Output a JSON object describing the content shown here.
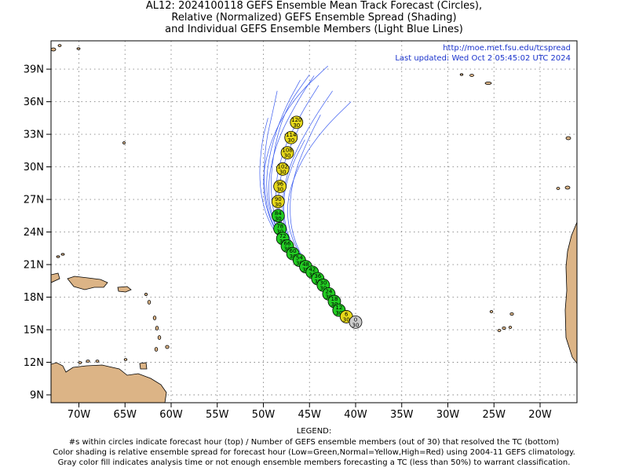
{
  "title_lines": [
    "AL12: 2024100118 GEFS Ensemble Mean Track Forecast (Circles),",
    "Relative (Normalized) GEFS Ensemble Spread (Shading)",
    "and Individual GEFS Ensemble Members (Light Blue Lines)"
  ],
  "header": {
    "url": "http://moe.met.fsu.edu/tcspread",
    "updated": "Last updated: Wed Oct 2 05:45:02 UTC 2024"
  },
  "lat_labels": [
    "9N",
    "12N",
    "15N",
    "18N",
    "21N",
    "24N",
    "27N",
    "30N",
    "33N",
    "36N",
    "39N"
  ],
  "lon_labels": [
    "70W",
    "65W",
    "60W",
    "55W",
    "50W",
    "45W",
    "40W",
    "35W",
    "30W",
    "25W",
    "20W"
  ],
  "legend": {
    "heading": "LEGEND:",
    "line1": "#s within circles indicate forecast hour (top) / Number of GEFS ensemble members (out of 30) that resolved the TC (bottom)",
    "line2": "Color shading is relative ensemble spread for forecast hour (Low=Green,Normal=Yellow,High=Red) using 2004-11 GEFS climatology.",
    "line3": "Gray color fill indicates analysis time or not enough ensemble members forecasting a TC (less than 50%) to warrant classification."
  },
  "colors": {
    "low": "#22cc22",
    "normal": "#e6d81a",
    "gray": "#cccccc",
    "land": "#dcb486",
    "member": "#3a5bf0"
  },
  "mean_track": [
    {
      "hour": "0",
      "members": "30",
      "lon": -40.0,
      "lat": 15.7,
      "spread": "gray"
    },
    {
      "hour": "6",
      "members": "30",
      "lon": -41.0,
      "lat": 16.2,
      "spread": "normal"
    },
    {
      "hour": "12",
      "members": "30",
      "lon": -41.8,
      "lat": 16.8,
      "spread": "low"
    },
    {
      "hour": "18",
      "members": "30",
      "lon": -42.3,
      "lat": 17.6,
      "spread": "low"
    },
    {
      "hour": "24",
      "members": "30",
      "lon": -42.9,
      "lat": 18.3,
      "spread": "low"
    },
    {
      "hour": "30",
      "members": "30",
      "lon": -43.5,
      "lat": 19.1,
      "spread": "low"
    },
    {
      "hour": "36",
      "members": "30",
      "lon": -44.1,
      "lat": 19.7,
      "spread": "low"
    },
    {
      "hour": "42",
      "members": "30",
      "lon": -44.7,
      "lat": 20.3,
      "spread": "low"
    },
    {
      "hour": "48",
      "members": "30",
      "lon": -45.4,
      "lat": 20.8,
      "spread": "low"
    },
    {
      "hour": "54",
      "members": "30",
      "lon": -46.1,
      "lat": 21.4,
      "spread": "low"
    },
    {
      "hour": "60",
      "members": "30",
      "lon": -46.8,
      "lat": 22.0,
      "spread": "low"
    },
    {
      "hour": "66",
      "members": "30",
      "lon": -47.4,
      "lat": 22.7,
      "spread": "low"
    },
    {
      "hour": "72",
      "members": "30",
      "lon": -47.9,
      "lat": 23.4,
      "spread": "low"
    },
    {
      "hour": "78",
      "members": "30",
      "lon": -48.2,
      "lat": 24.3,
      "spread": "low"
    },
    {
      "hour": "84",
      "members": "30",
      "lon": -48.4,
      "lat": 25.5,
      "spread": "low"
    },
    {
      "hour": "90",
      "members": "30",
      "lon": -48.4,
      "lat": 26.8,
      "spread": "normal"
    },
    {
      "hour": "96",
      "members": "30",
      "lon": -48.2,
      "lat": 28.2,
      "spread": "normal"
    },
    {
      "hour": "102",
      "members": "30",
      "lon": -47.9,
      "lat": 29.8,
      "spread": "normal"
    },
    {
      "hour": "108",
      "members": "30",
      "lon": -47.4,
      "lat": 31.3,
      "spread": "normal"
    },
    {
      "hour": "114",
      "members": "30",
      "lon": -47.0,
      "lat": 32.7,
      "spread": "normal"
    },
    {
      "hour": "120",
      "members": "30",
      "lon": -46.4,
      "lat": 34.1,
      "spread": "normal"
    }
  ],
  "members": [
    [
      [
        -40.0,
        15.7
      ],
      [
        -43.0,
        18.4
      ],
      [
        -46.3,
        21.3
      ],
      [
        -48.6,
        24.5
      ],
      [
        -49.3,
        28.0
      ],
      [
        -48.8,
        32.0
      ],
      [
        -47.5,
        35.5
      ],
      [
        -45.0,
        38.5
      ]
    ],
    [
      [
        -40.0,
        15.7
      ],
      [
        -42.8,
        18.2
      ],
      [
        -45.8,
        21.0
      ],
      [
        -47.8,
        24.2
      ],
      [
        -48.0,
        27.5
      ],
      [
        -46.8,
        31.0
      ],
      [
        -44.5,
        34.5
      ],
      [
        -42.5,
        37.0
      ]
    ],
    [
      [
        -40.0,
        15.7
      ],
      [
        -43.2,
        18.5
      ],
      [
        -46.7,
        21.6
      ],
      [
        -49.2,
        24.8
      ],
      [
        -50.0,
        28.2
      ],
      [
        -49.8,
        32.0
      ],
      [
        -49.0,
        35.0
      ],
      [
        -48.5,
        37.0
      ]
    ],
    [
      [
        -40.0,
        15.7
      ],
      [
        -42.6,
        18.0
      ],
      [
        -45.3,
        20.8
      ],
      [
        -47.2,
        23.8
      ],
      [
        -47.5,
        27.0
      ],
      [
        -46.0,
        30.5
      ],
      [
        -43.5,
        33.5
      ],
      [
        -40.5,
        36.0
      ]
    ],
    [
      [
        -40.0,
        15.7
      ],
      [
        -43.4,
        18.7
      ],
      [
        -47.0,
        22.0
      ],
      [
        -49.6,
        25.0
      ],
      [
        -50.5,
        28.5
      ],
      [
        -50.2,
        32.2
      ],
      [
        -49.5,
        34.5
      ]
    ],
    [
      [
        -40.0,
        15.7
      ],
      [
        -42.9,
        18.3
      ],
      [
        -46.0,
        21.2
      ],
      [
        -48.2,
        24.4
      ],
      [
        -48.8,
        27.8
      ],
      [
        -48.0,
        31.3
      ],
      [
        -46.0,
        34.8
      ],
      [
        -44.0,
        37.5
      ]
    ],
    [
      [
        -40.0,
        15.7
      ],
      [
        -43.0,
        18.4
      ],
      [
        -46.4,
        21.4
      ],
      [
        -48.9,
        24.6
      ],
      [
        -49.8,
        27.9
      ],
      [
        -49.3,
        31.5
      ],
      [
        -47.8,
        35.2
      ],
      [
        -46.0,
        38.0
      ]
    ],
    [
      [
        -40.0,
        15.7
      ],
      [
        -42.7,
        18.1
      ],
      [
        -45.6,
        20.9
      ],
      [
        -47.6,
        24.0
      ],
      [
        -47.9,
        27.3
      ],
      [
        -46.9,
        30.2
      ],
      [
        -45.5,
        32.5
      ]
    ],
    [
      [
        -40.0,
        15.7
      ],
      [
        -43.3,
        18.6
      ],
      [
        -46.9,
        21.8
      ],
      [
        -49.5,
        25.2
      ],
      [
        -50.2,
        29.0
      ],
      [
        -49.0,
        33.0
      ],
      [
        -46.5,
        36.5
      ],
      [
        -43.0,
        39.3
      ]
    ],
    [
      [
        -40.0,
        15.7
      ],
      [
        -42.5,
        17.9
      ],
      [
        -45.1,
        20.6
      ],
      [
        -46.9,
        23.6
      ],
      [
        -47.2,
        26.8
      ],
      [
        -46.5,
        29.8
      ],
      [
        -45.0,
        32.8
      ],
      [
        -43.8,
        34.8
      ]
    ],
    [
      [
        -40.0,
        15.7
      ],
      [
        -43.1,
        18.5
      ],
      [
        -46.5,
        21.5
      ],
      [
        -49.0,
        24.8
      ],
      [
        -49.6,
        28.5
      ],
      [
        -48.5,
        32.5
      ],
      [
        -46.2,
        36.2
      ],
      [
        -44.5,
        38.4
      ]
    ],
    [
      [
        -40.0,
        15.7
      ],
      [
        -42.8,
        18.2
      ],
      [
        -45.9,
        21.1
      ],
      [
        -48.0,
        24.3
      ],
      [
        -48.5,
        27.6
      ],
      [
        -47.6,
        30.9
      ],
      [
        -46.2,
        33.5
      ]
    ]
  ]
}
